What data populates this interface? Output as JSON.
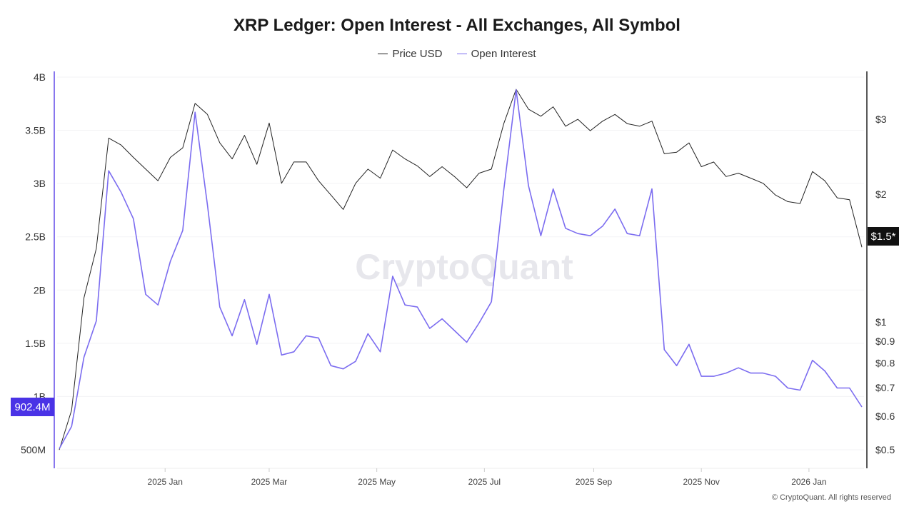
{
  "title": "XRP Ledger: Open Interest - All Exchanges, All Symbol",
  "legend": [
    {
      "label": "Price USD",
      "color": "#222222"
    },
    {
      "label": "Open Interest",
      "color": "#7b6cf0"
    }
  ],
  "watermark": "CryptoQuant",
  "footer": "© CryptoQuant. All rights reserved",
  "current_values": {
    "open_interest": "902.4M",
    "price": "$1.5*"
  },
  "chart_data": {
    "type": "line",
    "title": "XRP Ledger: Open Interest - All Exchanges, All Symbol",
    "x_axis": {
      "type": "date",
      "tick_labels": [
        "2025 Jan",
        "2025 Mar",
        "2025 May",
        "2025 Jul",
        "2025 Sep",
        "2025 Nov",
        "2026 Jan"
      ],
      "tick_dates": [
        "2025-01-01",
        "2025-03-01",
        "2025-05-01",
        "2025-07-01",
        "2025-09-01",
        "2025-11-01",
        "2026-01-01"
      ]
    },
    "y_left": {
      "scale": "linear",
      "unit": "USD",
      "tick_labels": [
        "500M",
        "1B",
        "1.5B",
        "2B",
        "2.5B",
        "3B",
        "3.5B",
        "4B"
      ],
      "tick_values": [
        0.5,
        1,
        1.5,
        2,
        2.5,
        3,
        3.5,
        4
      ],
      "range_billions": [
        0.33,
        4.05
      ],
      "series": "Open Interest"
    },
    "y_right": {
      "scale": "log",
      "tick_labels": [
        "$0.5",
        "$0.6",
        "$0.7",
        "$0.8",
        "$0.9",
        "$1",
        "$2",
        "$3"
      ],
      "tick_values": [
        0.5,
        0.6,
        0.7,
        0.8,
        0.9,
        1,
        2,
        3
      ],
      "range": [
        0.45,
        3.8
      ],
      "series": "Price USD"
    },
    "grid": "horizontal-faint",
    "legend_position": "top-center",
    "x": [
      "2024-11-02",
      "2024-11-09",
      "2024-11-16",
      "2024-11-23",
      "2024-11-30",
      "2024-12-07",
      "2024-12-14",
      "2024-12-21",
      "2024-12-28",
      "2025-01-04",
      "2025-01-11",
      "2025-01-18",
      "2025-01-25",
      "2025-02-01",
      "2025-02-08",
      "2025-02-15",
      "2025-02-22",
      "2025-03-01",
      "2025-03-08",
      "2025-03-15",
      "2025-03-22",
      "2025-03-29",
      "2025-04-05",
      "2025-04-12",
      "2025-04-19",
      "2025-04-26",
      "2025-05-03",
      "2025-05-10",
      "2025-05-17",
      "2025-05-24",
      "2025-05-31",
      "2025-06-07",
      "2025-06-14",
      "2025-06-21",
      "2025-06-28",
      "2025-07-05",
      "2025-07-12",
      "2025-07-19",
      "2025-07-26",
      "2025-08-02",
      "2025-08-09",
      "2025-08-16",
      "2025-08-23",
      "2025-08-30",
      "2025-09-06",
      "2025-09-13",
      "2025-09-20",
      "2025-09-27",
      "2025-10-04",
      "2025-10-11",
      "2025-10-18",
      "2025-10-25",
      "2025-11-01",
      "2025-11-08",
      "2025-11-15",
      "2025-11-22",
      "2025-11-29",
      "2025-12-06",
      "2025-12-13",
      "2025-12-20",
      "2025-12-27",
      "2026-01-03",
      "2026-01-10",
      "2026-01-17",
      "2026-01-24",
      "2026-01-31"
    ],
    "series": [
      {
        "name": "Price USD",
        "axis": "right",
        "color": "#222222",
        "values": [
          0.5,
          0.62,
          1.14,
          1.49,
          2.71,
          2.61,
          2.44,
          2.29,
          2.15,
          2.44,
          2.57,
          3.27,
          3.08,
          2.64,
          2.42,
          2.75,
          2.35,
          2.94,
          2.12,
          2.38,
          2.38,
          2.15,
          1.99,
          1.84,
          2.12,
          2.29,
          2.18,
          2.54,
          2.42,
          2.33,
          2.2,
          2.32,
          2.2,
          2.07,
          2.24,
          2.29,
          2.93,
          3.53,
          3.17,
          3.05,
          3.21,
          2.89,
          3.0,
          2.82,
          2.97,
          3.08,
          2.93,
          2.89,
          2.97,
          2.49,
          2.51,
          2.64,
          2.32,
          2.38,
          2.2,
          2.24,
          2.18,
          2.12,
          1.99,
          1.92,
          1.9,
          2.26,
          2.15,
          1.96,
          1.94,
          1.5
        ]
      },
      {
        "name": "Open Interest",
        "axis": "left",
        "unit": "billions USD",
        "color": "#7b6cf0",
        "values": [
          0.51,
          0.72,
          1.37,
          1.71,
          3.12,
          2.92,
          2.67,
          1.96,
          1.86,
          2.27,
          2.56,
          3.67,
          2.8,
          1.84,
          1.57,
          1.91,
          1.49,
          1.96,
          1.39,
          1.42,
          1.57,
          1.55,
          1.29,
          1.26,
          1.33,
          1.59,
          1.42,
          2.13,
          1.86,
          1.84,
          1.64,
          1.73,
          1.62,
          1.51,
          1.69,
          1.89,
          2.94,
          3.88,
          2.98,
          2.51,
          2.95,
          2.58,
          2.53,
          2.51,
          2.6,
          2.76,
          2.53,
          2.51,
          2.95,
          1.44,
          1.29,
          1.49,
          1.19,
          1.19,
          1.22,
          1.27,
          1.22,
          1.22,
          1.19,
          1.08,
          1.06,
          1.34,
          1.24,
          1.08,
          1.08,
          0.9024
        ]
      }
    ]
  }
}
